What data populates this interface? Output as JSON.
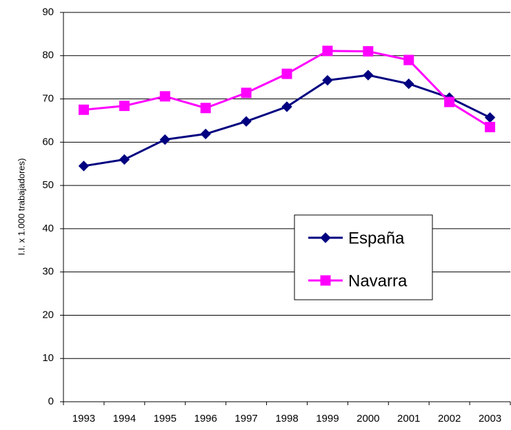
{
  "chart_data": {
    "type": "line",
    "y_label": "I.I. x 1.000 trabajadores)",
    "categories": [
      "1993",
      "1994",
      "1995",
      "1996",
      "1997",
      "1998",
      "1999",
      "2000",
      "2001",
      "2002",
      "2003"
    ],
    "series": [
      {
        "name": "España",
        "color": "#000080",
        "marker": "diamond",
        "values": [
          54.5,
          56,
          60.6,
          61.9,
          64.8,
          68.2,
          74.3,
          75.5,
          73.5,
          70.3,
          65.7
        ]
      },
      {
        "name": "Navarra",
        "color": "#ff00ff",
        "marker": "square",
        "values": [
          67.5,
          68.4,
          70.6,
          67.9,
          71.4,
          75.8,
          81.1,
          81,
          79,
          69.3,
          63.5
        ]
      }
    ],
    "ylim": [
      0,
      90
    ],
    "yticks": [
      0,
      10,
      20,
      30,
      40,
      50,
      60,
      70,
      80,
      90
    ],
    "grid": true
  }
}
